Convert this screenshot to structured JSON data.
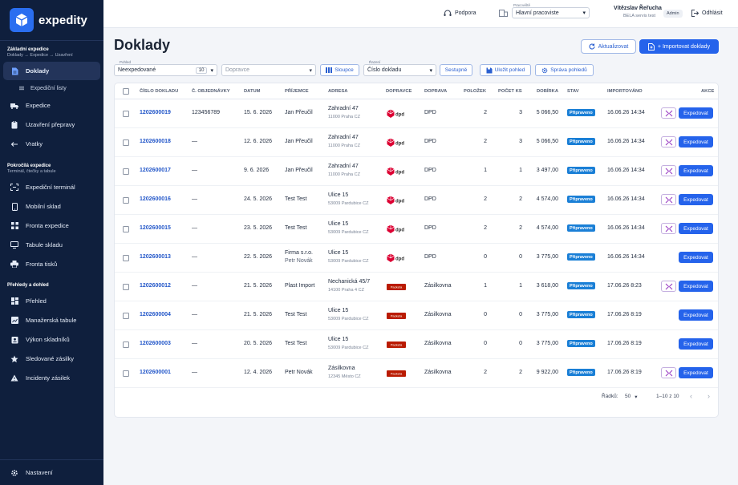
{
  "brand": {
    "name": "expedity"
  },
  "sidebar": {
    "sections": [
      {
        "title": "Základní expedice",
        "subtitle": "Doklady → Expedice → Uzavření"
      },
      {
        "title": "Pokročilá expedice",
        "subtitle": "Terminál, čtečky a tabule"
      },
      {
        "title": "Přehledy a dohled",
        "subtitle": ""
      }
    ],
    "items": [
      {
        "label": "Doklady",
        "icon": "document-icon"
      },
      {
        "label": "Expediční listy",
        "icon": "list-icon"
      },
      {
        "label": "Expedice",
        "icon": "truck-icon"
      },
      {
        "label": "Uzavření přepravy",
        "icon": "clipboard-icon"
      },
      {
        "label": "Vratky",
        "icon": "return-arrow-icon"
      },
      {
        "label": "Expediční terminál",
        "icon": "scan-icon"
      },
      {
        "label": "Mobilní sklad",
        "icon": "phone-icon"
      },
      {
        "label": "Fronta expedice",
        "icon": "queue-icon"
      },
      {
        "label": "Tabule skladu",
        "icon": "monitor-icon"
      },
      {
        "label": "Fronta tisků",
        "icon": "printer-icon"
      },
      {
        "label": "Přehled",
        "icon": "dashboard-icon"
      },
      {
        "label": "Manažerská tabule",
        "icon": "chart-icon"
      },
      {
        "label": "Výkon skladníků",
        "icon": "badge-icon"
      },
      {
        "label": "Sledované zásilky",
        "icon": "star-icon"
      },
      {
        "label": "Incidenty zásilek",
        "icon": "warning-icon"
      }
    ],
    "settings": "Nastavení"
  },
  "topbar": {
    "support": "Podpora",
    "workplace_label": "Pracoviště",
    "workplace": "Hlavní pracoviste",
    "user_name": "Vítězslav Řeřucha",
    "user_org": "BELA servis test",
    "role": "Admin",
    "logout": "Odhlásit"
  },
  "page": {
    "title": "Doklady",
    "refresh": "Aktualizovat",
    "import": "+ Importovat doklady"
  },
  "filters": {
    "view_label": "Pohled",
    "view": "Neexpedované",
    "count": "10",
    "carrier_placeholder": "Dopravce",
    "columns": "Sloupce",
    "sort_label": "Řazení",
    "sort": "Číslo dokladu",
    "direction": "Sestupně",
    "save_view": "Uložit pohled",
    "manage_views": "Správa pohledů"
  },
  "table": {
    "headers": [
      "ČÍSLO DOKLADU",
      "Č. OBJEDNÁVKY",
      "DATUM",
      "PŘÍJEMCE",
      "ADRESA",
      "DOPRAVCE",
      "DOPRAVA",
      "POLOŽEK",
      "POČET KS",
      "DOBÍRKA",
      "STAV",
      "IMPORTOVÁNO",
      "AKCE"
    ],
    "action_label": "Expedovat",
    "rows": [
      {
        "doc": "1202600019",
        "order": "123456789",
        "date": "15. 6. 2026",
        "recipient": "Jan Přeučil",
        "recipient2": "",
        "addr1": "Zahradní 47",
        "addr2": "11000 Praha CZ",
        "carrier": "dpd",
        "transport": "DPD",
        "items": "2",
        "pcs": "3",
        "cod": "5 066,50",
        "status": "Připraveno",
        "imported": "16.06.26 14:34",
        "pair": true
      },
      {
        "doc": "1202600018",
        "order": "—",
        "date": "12. 6. 2026",
        "recipient": "Jan Přeučil",
        "recipient2": "",
        "addr1": "Zahradní 47",
        "addr2": "11000 Praha CZ",
        "carrier": "dpd",
        "transport": "DPD",
        "items": "2",
        "pcs": "3",
        "cod": "5 066,50",
        "status": "Připraveno",
        "imported": "16.06.26 14:34",
        "pair": true
      },
      {
        "doc": "1202600017",
        "order": "—",
        "date": "9. 6. 2026",
        "recipient": "Jan Přeučil",
        "recipient2": "",
        "addr1": "Zahradní 47",
        "addr2": "11000 Praha CZ",
        "carrier": "dpd",
        "transport": "DPD",
        "items": "1",
        "pcs": "1",
        "cod": "3 497,00",
        "status": "Připraveno",
        "imported": "16.06.26 14:34",
        "pair": true
      },
      {
        "doc": "1202600016",
        "order": "—",
        "date": "24. 5. 2026",
        "recipient": "Test Test",
        "recipient2": "",
        "addr1": "Ulice 15",
        "addr2": "53009 Pardubice CZ",
        "carrier": "dpd",
        "transport": "DPD",
        "items": "2",
        "pcs": "2",
        "cod": "4 574,00",
        "status": "Připraveno",
        "imported": "16.06.26 14:34",
        "pair": true
      },
      {
        "doc": "1202600015",
        "order": "—",
        "date": "23. 5. 2026",
        "recipient": "Test Test",
        "recipient2": "",
        "addr1": "Ulice 15",
        "addr2": "53009 Pardubice CZ",
        "carrier": "dpd",
        "transport": "DPD",
        "items": "2",
        "pcs": "2",
        "cod": "4 574,00",
        "status": "Připraveno",
        "imported": "16.06.26 14:34",
        "pair": true
      },
      {
        "doc": "1202600013",
        "order": "—",
        "date": "22. 5. 2026",
        "recipient": "Firma s.r.o.",
        "recipient2": "Petr Novák",
        "addr1": "Ulice 15",
        "addr2": "53009 Pardubice CZ",
        "carrier": "dpd",
        "transport": "DPD",
        "items": "0",
        "pcs": "0",
        "cod": "3 775,00",
        "status": "Připraveno",
        "imported": "16.06.26 14:34",
        "pair": false
      },
      {
        "doc": "1202600012",
        "order": "—",
        "date": "21. 5. 2026",
        "recipient": "Plast Import",
        "recipient2": "",
        "addr1": "Nechanická 45/7",
        "addr2": "14100 Praha 4 CZ",
        "carrier": "packeta",
        "transport": "Zásilkovna",
        "items": "1",
        "pcs": "1",
        "cod": "3 618,00",
        "status": "Připraveno",
        "imported": "17.06.26 8:23",
        "pair": true
      },
      {
        "doc": "1202600004",
        "order": "—",
        "date": "21. 5. 2026",
        "recipient": "Test Test",
        "recipient2": "",
        "addr1": "Ulice 15",
        "addr2": "53009 Pardubice CZ",
        "carrier": "packeta",
        "transport": "Zásilkovna",
        "items": "0",
        "pcs": "0",
        "cod": "3 775,00",
        "status": "Připraveno",
        "imported": "17.06.26 8:19",
        "pair": false
      },
      {
        "doc": "1202600003",
        "order": "—",
        "date": "20. 5. 2026",
        "recipient": "Test Test",
        "recipient2": "",
        "addr1": "Ulice 15",
        "addr2": "53009 Pardubice CZ",
        "carrier": "packeta",
        "transport": "Zásilkovna",
        "items": "0",
        "pcs": "0",
        "cod": "3 775,00",
        "status": "Připraveno",
        "imported": "17.06.26 8:19",
        "pair": false
      },
      {
        "doc": "1202600001",
        "order": "—",
        "date": "12. 4. 2026",
        "recipient": "Petr Novák",
        "recipient2": "",
        "addr1": "Zásilkovna",
        "addr2": "12345 Město CZ",
        "carrier": "packeta",
        "transport": "Zásilkovna",
        "items": "2",
        "pcs": "2",
        "cod": "9 922,00",
        "status": "Připraveno",
        "imported": "17.06.26 8:19",
        "pair": true
      }
    ]
  },
  "pager": {
    "rows_label": "Řádků:",
    "page_size": "50",
    "range": "1–10 z 10"
  },
  "colors": {
    "sidebar": "#0f1f3d",
    "accent": "#2563eb",
    "badge": "#1a7fd6",
    "dpd": "#dc0032",
    "packeta": "#ba1b02"
  }
}
